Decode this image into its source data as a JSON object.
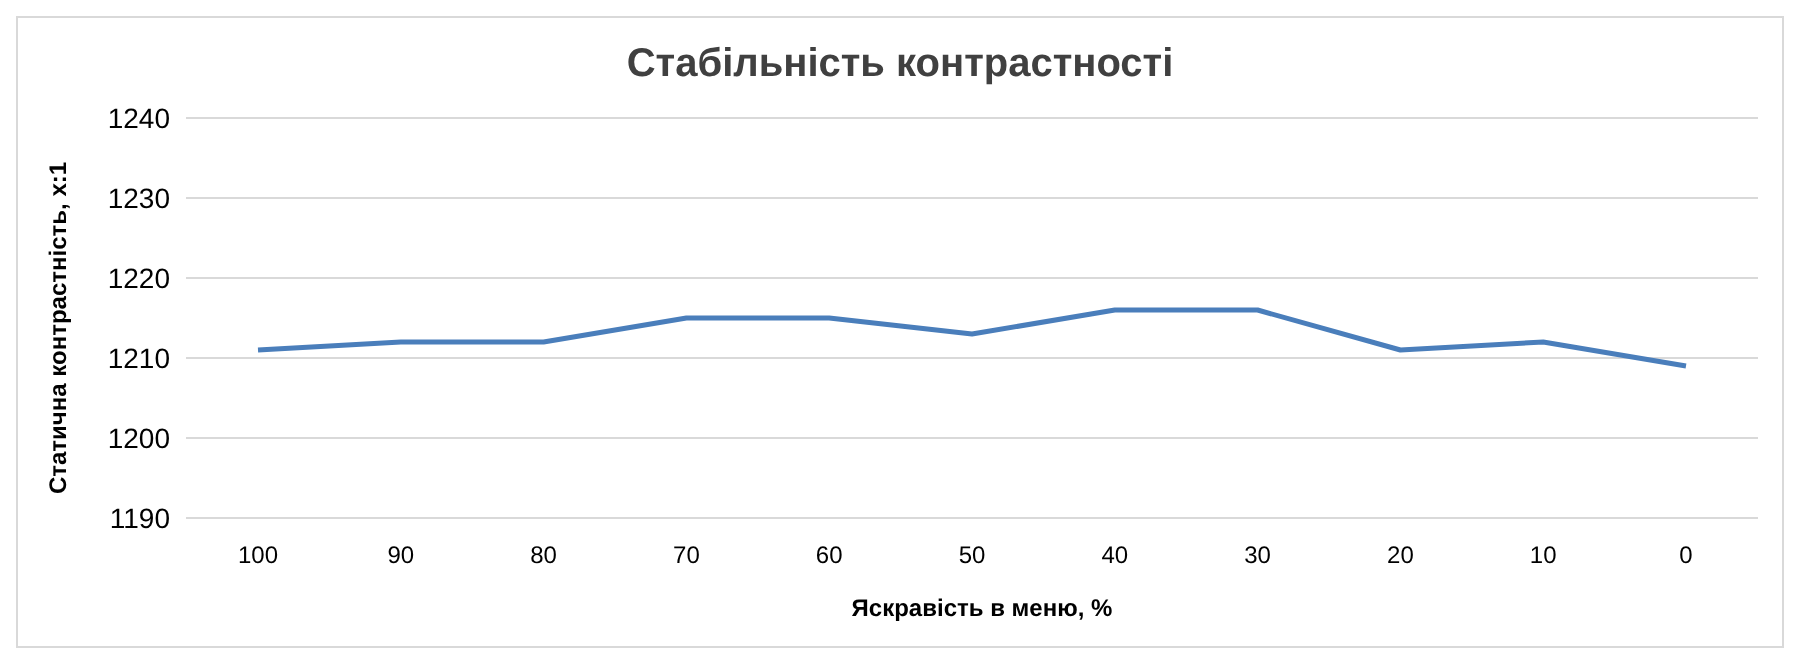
{
  "chart_data": {
    "type": "line",
    "title": "Стабільність контрастності",
    "xlabel": "Яскравість в меню, %",
    "ylabel": "Статична контрастність, x:1",
    "categories": [
      "100",
      "90",
      "80",
      "70",
      "60",
      "50",
      "40",
      "30",
      "20",
      "10",
      "0"
    ],
    "series": [
      {
        "color": "#4a7ebb",
        "values": [
          1211,
          1212,
          1212,
          1215,
          1215,
          1213,
          1216,
          1216,
          1211,
          1212,
          1209
        ]
      }
    ],
    "ylim": [
      1190,
      1240
    ],
    "yticks": [
      1190,
      1200,
      1210,
      1220,
      1230,
      1240
    ],
    "grid": "y",
    "legend": false,
    "marker": "none",
    "line_style": "solid"
  }
}
